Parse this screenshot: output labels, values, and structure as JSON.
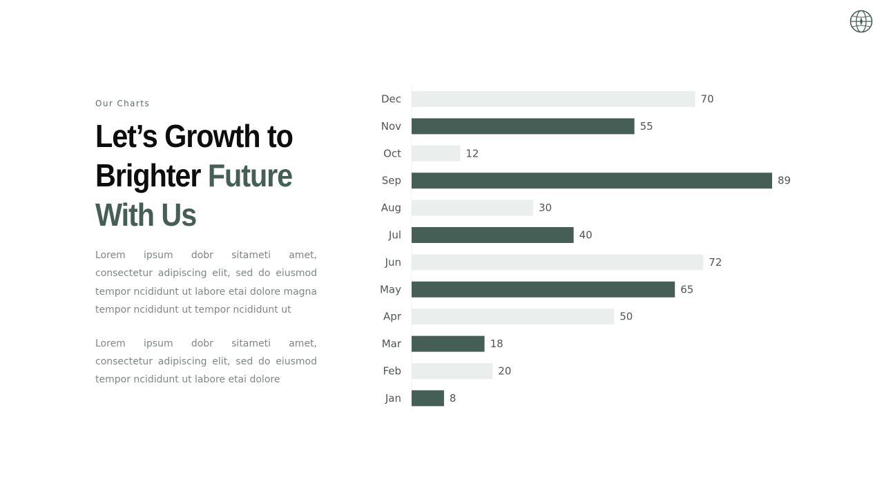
{
  "eyebrow": "Our Charts",
  "headline": {
    "line1": "Let’s Growth to",
    "line2_plain": "Brighter",
    "line2_accent": "Future",
    "line3_accent": "With Us"
  },
  "paragraphs": [
    "Lorem ipsum dobr sitameti amet, consectetur adipiscing elit, sed do eiusmod tempor ncididunt ut labore etai dolore magna tempor ncididunt ut tempor ncididunt ut",
    "Lorem ipsum dobr sitameti amet, consectetur adipiscing elit, sed do eiusmod tempor ncididunt ut labore etai dolore"
  ],
  "logo_icon": "globe-compass-icon",
  "colors": {
    "accent": "#455f57",
    "light_bar": "#eaefed",
    "text_dark": "#0d0d0d",
    "text_muted": "#7f8784",
    "label": "#4f5553"
  },
  "chart_data": {
    "type": "bar",
    "orientation": "horizontal",
    "categories": [
      "Dec",
      "Nov",
      "Oct",
      "Sep",
      "Aug",
      "Jul",
      "Jun",
      "May",
      "Apr",
      "Mar",
      "Feb",
      "Jan"
    ],
    "values": [
      70,
      55,
      12,
      89,
      30,
      40,
      72,
      65,
      50,
      18,
      20,
      8
    ],
    "bar_colors": [
      "#eaefed",
      "#455f57",
      "#eaefed",
      "#455f57",
      "#eaefed",
      "#455f57",
      "#eaefed",
      "#455f57",
      "#eaefed",
      "#455f57",
      "#eaefed",
      "#455f57"
    ],
    "data_labels": true,
    "xlim": [
      0,
      89
    ],
    "grid": false,
    "legend": "none"
  }
}
